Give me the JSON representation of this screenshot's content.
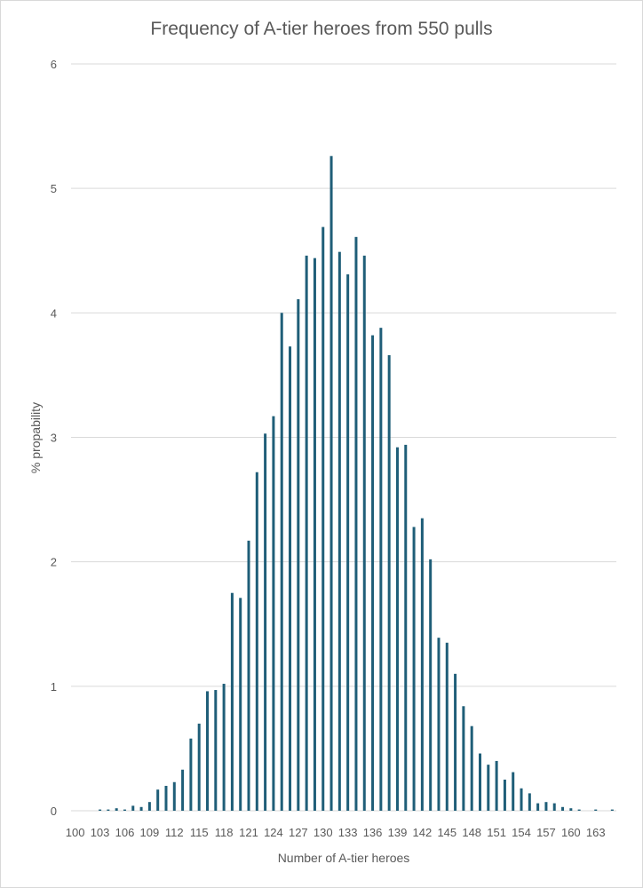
{
  "chart_data": {
    "type": "bar",
    "title": "Frequency of A-tier heroes from 550 pulls",
    "xlabel": "Number of A-tier heroes",
    "ylabel": "% propability",
    "ylim": [
      0,
      6
    ],
    "yticks": [
      "0",
      "1",
      "2",
      "3",
      "4",
      "5",
      "6"
    ],
    "grid": true,
    "legend": "none",
    "bar_color": "#1f5e78",
    "categories": [
      100,
      101,
      102,
      103,
      104,
      105,
      106,
      107,
      108,
      109,
      110,
      111,
      112,
      113,
      114,
      115,
      116,
      117,
      118,
      119,
      120,
      121,
      122,
      123,
      124,
      125,
      126,
      127,
      128,
      129,
      130,
      131,
      132,
      133,
      134,
      135,
      136,
      137,
      138,
      139,
      140,
      141,
      142,
      143,
      144,
      145,
      146,
      147,
      148,
      149,
      150,
      151,
      152,
      153,
      154,
      155,
      156,
      157,
      158,
      159,
      160,
      161,
      162,
      163,
      164,
      165
    ],
    "values": [
      0,
      0,
      0,
      0.01,
      0.01,
      0.02,
      0.01,
      0.04,
      0.03,
      0.07,
      0.17,
      0.2,
      0.23,
      0.33,
      0.58,
      0.7,
      0.96,
      0.97,
      1.02,
      1.75,
      1.71,
      2.17,
      2.72,
      3.03,
      3.17,
      4.0,
      3.73,
      4.11,
      4.46,
      4.44,
      4.69,
      5.26,
      4.49,
      4.31,
      4.61,
      4.46,
      3.82,
      3.88,
      3.66,
      2.92,
      2.94,
      2.28,
      2.35,
      2.02,
      1.39,
      1.35,
      1.1,
      0.84,
      0.68,
      0.46,
      0.37,
      0.4,
      0.25,
      0.31,
      0.18,
      0.14,
      0.06,
      0.07,
      0.06,
      0.03,
      0.02,
      0.01,
      0,
      0.01,
      0,
      0.01
    ],
    "xtick_labels": [
      "100",
      "103",
      "106",
      "109",
      "112",
      "115",
      "118",
      "121",
      "124",
      "127",
      "130",
      "133",
      "136",
      "139",
      "142",
      "145",
      "148",
      "151",
      "154",
      "157",
      "160",
      "163"
    ]
  }
}
